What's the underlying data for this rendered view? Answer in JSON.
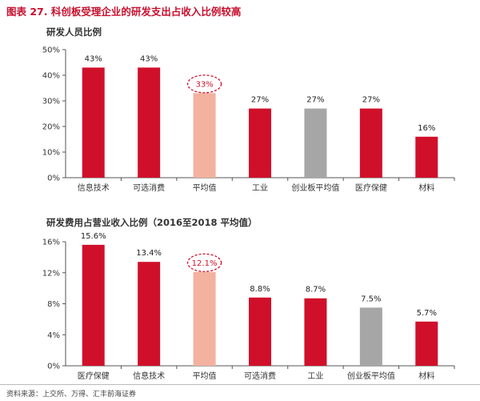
{
  "figure_title": "图表 27. 科创板受理企业的研发支出占收入比例较高",
  "source": "资料来源：上交所、万得、汇丰前海证券",
  "colors": {
    "bar": "#d0102a",
    "average": "#f3b19f",
    "star": "#a6a6a6",
    "highlight_circle": "#d0102a"
  },
  "chart_data": [
    {
      "type": "bar",
      "title": "研发人员比例",
      "categories": [
        "信息技术",
        "可选消费",
        "平均值",
        "工业",
        "创业板平均值",
        "医疗保健",
        "材料"
      ],
      "values": [
        43,
        43,
        33,
        27,
        27,
        27,
        16
      ],
      "value_labels": [
        "43%",
        "43%",
        "33%",
        "27%",
        "27%",
        "27%",
        "16%"
      ],
      "highlight": "平均值",
      "ylim": [
        0,
        50
      ],
      "yticks": [
        0,
        10,
        20,
        30,
        40,
        50
      ],
      "ytick_labels": [
        "0%",
        "10%",
        "20%",
        "30%",
        "40%",
        "50%"
      ],
      "grid": false,
      "bar_colors": [
        "bar",
        "bar",
        "average",
        "bar",
        "star",
        "bar",
        "bar"
      ]
    },
    {
      "type": "bar",
      "title": "研发费用占营业收入比例（2016至2018 平均值）",
      "categories": [
        "医疗保健",
        "信息技术",
        "平均值",
        "可选消费",
        "工业",
        "创业板平均值",
        "材料"
      ],
      "values": [
        15.6,
        13.4,
        12.1,
        8.8,
        8.7,
        7.5,
        5.7
      ],
      "value_labels": [
        "15.6%",
        "13.4%",
        "12.1%",
        "8.8%",
        "8.7%",
        "7.5%",
        "5.7%"
      ],
      "highlight": "平均值",
      "ylim": [
        0,
        16
      ],
      "yticks": [
        0,
        4,
        8,
        12,
        16
      ],
      "ytick_labels": [
        "0%",
        "4%",
        "8%",
        "12%",
        "16%"
      ],
      "grid": false,
      "bar_colors": [
        "bar",
        "bar",
        "average",
        "bar",
        "bar",
        "star",
        "bar"
      ]
    }
  ]
}
